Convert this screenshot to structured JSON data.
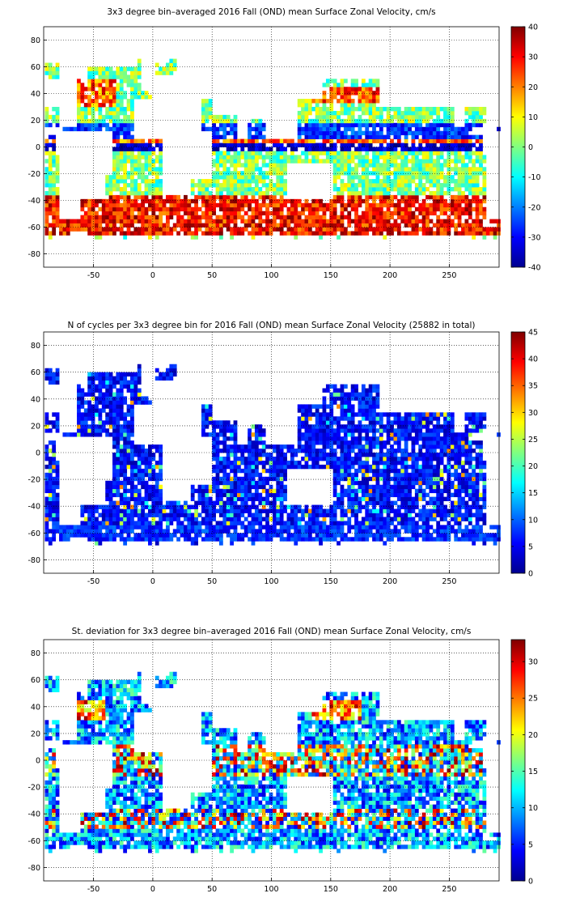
{
  "chart_data": [
    {
      "type": "heatmap",
      "title": "3x3 degree bin–averaged 2016 Fall (OND) mean Surface Zonal Velocity, cm/s",
      "xlabel": "",
      "ylabel": "",
      "xlim": [
        -92,
        292
      ],
      "ylim": [
        -90,
        90
      ],
      "x_ticks": [
        -50,
        0,
        50,
        100,
        150,
        200,
        250
      ],
      "y_ticks": [
        80,
        60,
        40,
        20,
        0,
        -20,
        -40,
        -60,
        -80
      ],
      "colorbar": {
        "min": -40,
        "max": 40,
        "ticks": [
          40,
          30,
          20,
          10,
          0,
          -10,
          -20,
          -30,
          -40
        ]
      },
      "colormap": "jet",
      "grid": true,
      "bin_size_deg": 3
    },
    {
      "type": "heatmap",
      "title": "N of cycles per 3x3 degree bin for 2016 Fall (OND) mean Surface Zonal Velocity (25882 in total)",
      "xlabel": "",
      "ylabel": "",
      "xlim": [
        -92,
        292
      ],
      "ylim": [
        -90,
        90
      ],
      "x_ticks": [
        -50,
        0,
        50,
        100,
        150,
        200,
        250
      ],
      "y_ticks": [
        80,
        60,
        40,
        20,
        0,
        -20,
        -40,
        -60,
        -80
      ],
      "colorbar": {
        "min": 0,
        "max": 45,
        "ticks": [
          45,
          40,
          35,
          30,
          25,
          20,
          15,
          10,
          5,
          0
        ]
      },
      "colormap": "jet",
      "grid": true,
      "bin_size_deg": 3
    },
    {
      "type": "heatmap",
      "title": "St. deviation for 3x3 degree bin–averaged 2016 Fall (OND) mean Surface Zonal Velocity, cm/s",
      "xlabel": "",
      "ylabel": "",
      "xlim": [
        -92,
        292
      ],
      "ylim": [
        -90,
        90
      ],
      "x_ticks": [
        -50,
        0,
        50,
        100,
        150,
        200,
        250
      ],
      "y_ticks": [
        80,
        60,
        40,
        20,
        0,
        -20,
        -40,
        -60,
        -80
      ],
      "colorbar": {
        "min": 0,
        "max": 33,
        "ticks": [
          30,
          25,
          20,
          15,
          10,
          5,
          0
        ]
      },
      "colormap": "jet",
      "grid": true,
      "bin_size_deg": 3
    }
  ]
}
